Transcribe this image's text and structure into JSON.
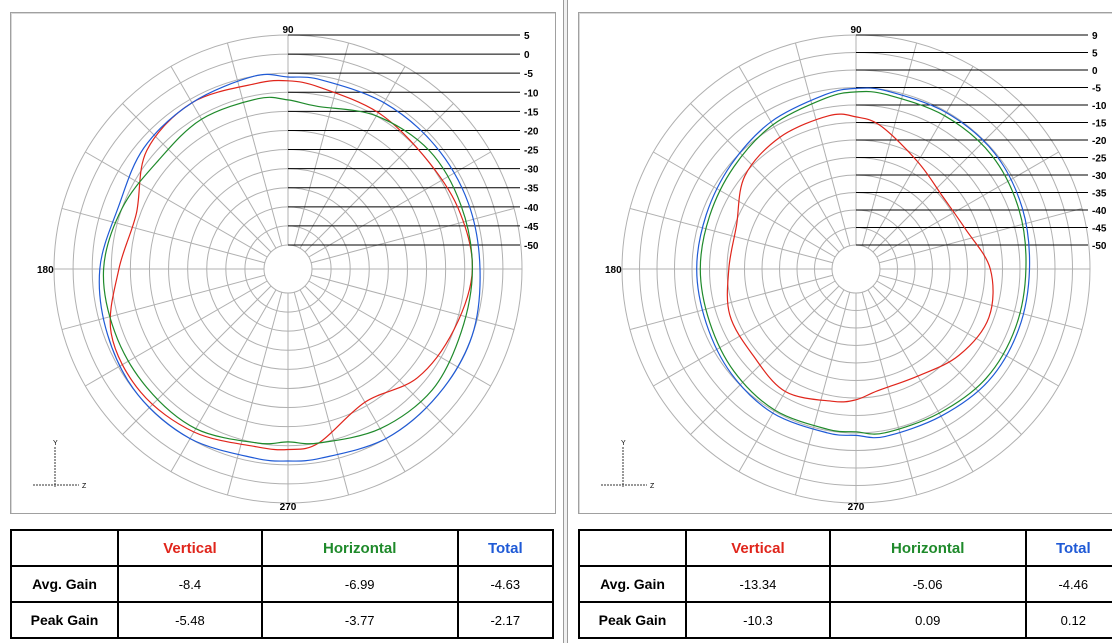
{
  "colors": {
    "vertical": "#e0251b",
    "horizontal": "#1f8a2b",
    "total": "#1f5ad6",
    "grid": "#b0b0b0"
  },
  "table_headers": [
    "",
    "Vertical",
    "Horizontal",
    "Total"
  ],
  "chart_data": [
    {
      "type": "polar",
      "angle_labels": [
        "90",
        "180",
        "270"
      ],
      "radial_tick_labels": [
        "5",
        "0",
        "-5",
        "-10",
        "-15",
        "-20",
        "-25",
        "-30",
        "-35",
        "-40",
        "-45",
        "-50"
      ],
      "rlim": [
        -50,
        5
      ],
      "axes_indicator": [
        "Y",
        "Z"
      ],
      "angles_deg": [
        0,
        20,
        40,
        60,
        80,
        90,
        100,
        120,
        140,
        160,
        180,
        200,
        220,
        240,
        260,
        270,
        280,
        300,
        320,
        340
      ],
      "series": [
        {
          "name": "Vertical",
          "values": [
            -8,
            -9,
            -10,
            -9,
            -8,
            -7,
            -7,
            -6,
            -8,
            -14,
            -12,
            -7,
            -6,
            -7,
            -9,
            -9,
            -10,
            -16,
            -12,
            -10
          ]
        },
        {
          "name": "Horizontal",
          "values": [
            -8,
            -8,
            -8,
            -10,
            -13,
            -12,
            -11,
            -11,
            -12,
            -10,
            -8,
            -8,
            -8,
            -8,
            -10,
            -11,
            -10,
            -8,
            -7,
            -8
          ]
        },
        {
          "name": "Total",
          "values": [
            -6,
            -6,
            -6,
            -6,
            -6,
            -6,
            -5,
            -6,
            -7,
            -9,
            -7,
            -6,
            -5,
            -5,
            -6,
            -6,
            -6,
            -5,
            -5,
            -5
          ]
        }
      ],
      "table": {
        "rows": [
          {
            "label": "Avg. Gain",
            "values": [
              "-8.4",
              "-6.99",
              "-4.63"
            ]
          },
          {
            "label": "Peak Gain",
            "values": [
              "-5.48",
              "-3.77",
              "-2.17"
            ]
          }
        ]
      }
    },
    {
      "type": "polar",
      "angle_labels": [
        "90",
        "180",
        "270"
      ],
      "radial_tick_labels": [
        "9",
        "5",
        "0",
        "-5",
        "-10",
        "-15",
        "-20",
        "-25",
        "-30",
        "-35",
        "-40",
        "-45",
        "-50"
      ],
      "rlim": [
        -50,
        9
      ],
      "axes_indicator": [
        "Y",
        "Z"
      ],
      "angles_deg": [
        0,
        20,
        40,
        60,
        80,
        90,
        100,
        120,
        140,
        160,
        180,
        200,
        220,
        240,
        260,
        270,
        280,
        300,
        320,
        340
      ],
      "series": [
        {
          "name": "Vertical",
          "values": [
            -19,
            -24,
            -25,
            -22,
            -16,
            -14,
            -13,
            -14,
            -16,
            -21,
            -21,
            -19,
            -19,
            -17,
            -19,
            -20,
            -22,
            -22,
            -19,
            -17
          ]
        },
        {
          "name": "Horizontal",
          "values": [
            -9,
            -8,
            -7,
            -7,
            -7,
            -7,
            -8,
            -10,
            -12,
            -13,
            -13,
            -13,
            -12,
            -11,
            -11,
            -11,
            -10,
            -10,
            -9,
            -9
          ]
        },
        {
          "name": "Total",
          "values": [
            -8,
            -7,
            -6,
            -6,
            -6,
            -6,
            -7,
            -9,
            -11,
            -12,
            -12,
            -12,
            -11,
            -10,
            -10,
            -10,
            -9,
            -9,
            -8,
            -8
          ]
        }
      ],
      "table": {
        "rows": [
          {
            "label": "Avg. Gain",
            "values": [
              "-13.34",
              "-5.06",
              "-4.46"
            ]
          },
          {
            "label": "Peak Gain",
            "values": [
              "-10.3",
              "0.09",
              "0.12"
            ]
          }
        ]
      }
    }
  ]
}
